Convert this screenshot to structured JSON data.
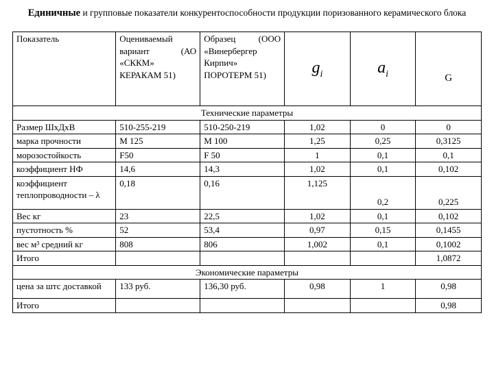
{
  "heading": {
    "bold": "Единичные",
    "rest": " и групповые показатели конкурентоспособности продукции поризованного керамического блока"
  },
  "columns": {
    "c1": "Показатель",
    "c2_line1": "Оцениваемый",
    "c2_line2": "вариант (АО",
    "c2_line3": "«СККМ»",
    "c2_line4": "КЕРАКАМ 51)",
    "c3_line1": "Образец (ООО",
    "c3_line2": "«Винербергер",
    "c3_line3": "Кирпич»",
    "c3_line4": "ПОРОТЕРМ 51)",
    "c4": "g",
    "c4_sub": "i",
    "c5": "a",
    "c5_sub": "i",
    "c6": "G"
  },
  "section1": "Технические параметры",
  "tech_rows": [
    {
      "p": "Размер ШхДхВ",
      "v1": "510-255-219",
      "v2": "510-250-219",
      "g": "1,02",
      "a": "0",
      "G": "0"
    },
    {
      "p": "марка прочности",
      "v1": "М 125",
      "v2": "М 100",
      "g": "1,25",
      "a": "0,25",
      "G": "0,3125"
    },
    {
      "p": "морозостойкость",
      "v1": "F50",
      "v2": "F 50",
      "g": "1",
      "a": "0,1",
      "G": "0,1"
    },
    {
      "p": "коэффициент НФ",
      "v1": "14,6",
      "v2": "14,3",
      "g": "1,02",
      "a": "0,1",
      "G": "0,102"
    },
    {
      "p": "коэффициент теплопроводности – λ",
      "v1": "0,18",
      "v2": "0,16",
      "g": "1,125",
      "a": "0,2",
      "G": "0,225",
      "tall": true
    },
    {
      "p": "Вес кг",
      "v1": "23",
      "v2": "22,5",
      "g": "1,02",
      "a": "0,1",
      "G": "0,102"
    },
    {
      "p": "пустотность %",
      "v1": "52",
      "v2": "53,4",
      "g": "0,97",
      "a": "0,15",
      "G": "0,1455"
    },
    {
      "p": "вес м³ средний кг",
      "v1": "808",
      "v2": "806",
      "g": "1,002",
      "a": "0,1",
      "G": "0,1002"
    }
  ],
  "itogo": "Итого",
  "tech_total_G": "1,0872",
  "section2": "Экономические параметры",
  "econ_rows": [
    {
      "p": "цена за штс доставкой",
      "v1": "133 руб.",
      "v2": "136,30 руб.",
      "g": "0,98",
      "a": "1",
      "G": "0,98"
    }
  ],
  "econ_total_G": "0,98"
}
